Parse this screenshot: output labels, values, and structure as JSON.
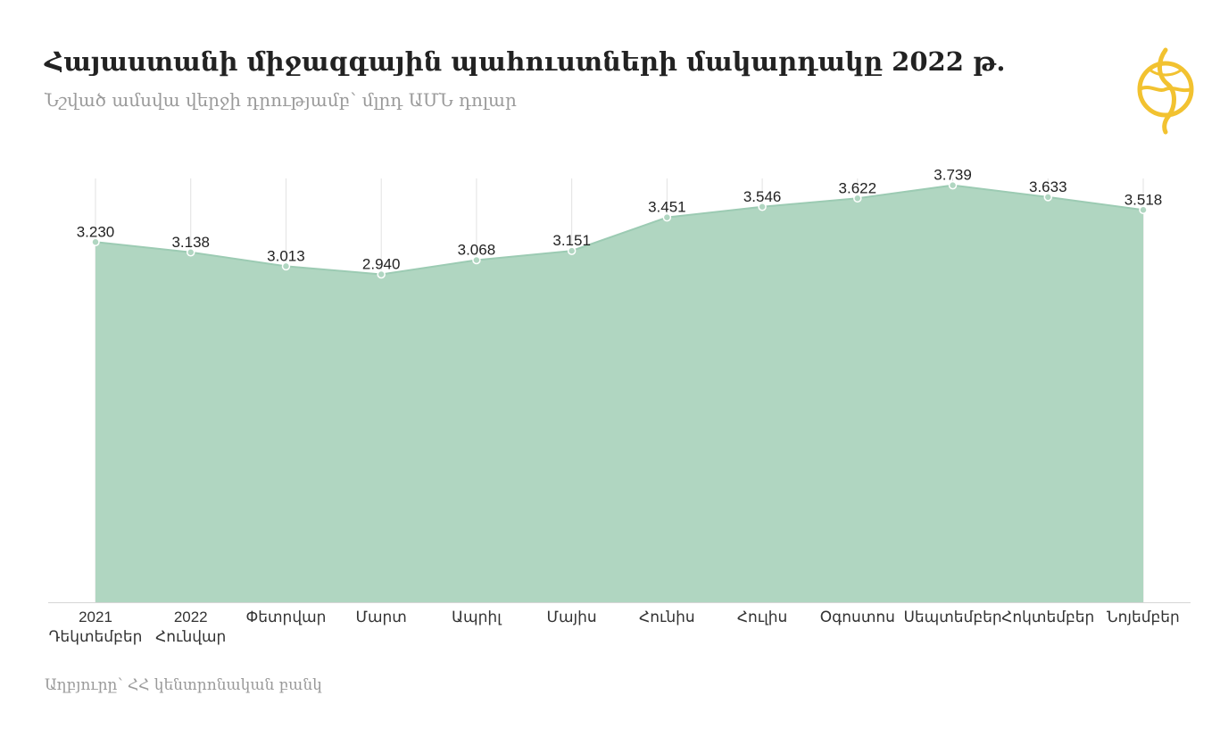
{
  "header": {
    "title": "Հայաստանի միջազգային պահուստների մակարդակը 2022 թ.",
    "subtitle": "Նշված ամսվա վերջի դրությամբ՝ մլրդ ԱՄՆ դոլար"
  },
  "footer": {
    "source": "Աղբյուրը՝ ՀՀ կենտրոնական բանկ"
  },
  "logo": {
    "icon": "globe-logo-icon",
    "color": "#f2c230"
  },
  "colors": {
    "area_fill": "#b0d6c1",
    "line": "#9ccbb3",
    "marker_stroke": "#6aaa88",
    "gridline": "#e2e2e2",
    "label": "#222222",
    "tick_label": "#333333"
  },
  "chart_data": {
    "type": "area",
    "categories": [
      [
        "2021",
        "Դեկտեմբեր"
      ],
      [
        "2022",
        "Հունվար"
      ],
      [
        "Փետրվար"
      ],
      [
        "Մարտ"
      ],
      [
        "Ապրիլ"
      ],
      [
        "Մայիս"
      ],
      [
        "Հունիս"
      ],
      [
        "Հուլիս"
      ],
      [
        "Օգոստոս"
      ],
      [
        "Սեպտեմբեր"
      ],
      [
        "Հոկտեմբեր"
      ],
      [
        "Նոյեմբեր"
      ]
    ],
    "values": [
      3.23,
      3.138,
      3.013,
      2.94,
      3.068,
      3.151,
      3.451,
      3.546,
      3.622,
      3.739,
      3.633,
      3.518
    ],
    "value_labels": [
      "3.230",
      "3.138",
      "3.013",
      "2.940",
      "3.068",
      "3.151",
      "3.451",
      "3.546",
      "3.622",
      "3.739",
      "3.633",
      "3.518"
    ],
    "ylim": [
      0,
      3.8
    ],
    "grid": "vertical",
    "legend": "none"
  }
}
